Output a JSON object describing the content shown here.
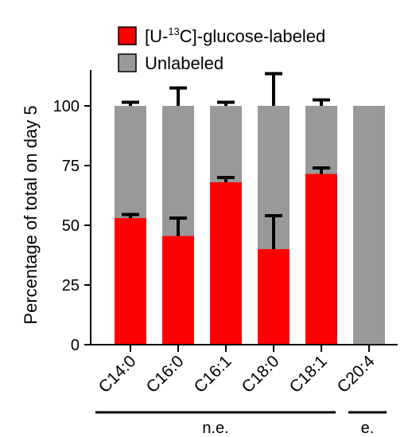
{
  "chart_data": {
    "type": "bar",
    "stacked": true,
    "categories": [
      "C14:0",
      "C16:0",
      "C16:1",
      "C18:0",
      "C18:1",
      "C20:4"
    ],
    "series": [
      {
        "name": "[U-13C]-glucose-labeled",
        "legend_prefix": "[U-",
        "legend_sup": "13",
        "legend_suffix": "C]-glucose-labeled",
        "color": "#ff0000",
        "values": [
          53,
          45.5,
          68,
          40,
          71.5,
          0
        ],
        "error_upper": [
          1.5,
          7.5,
          2,
          14,
          2.5,
          0
        ]
      },
      {
        "name": "Unlabeled",
        "color": "#999999",
        "values": [
          47,
          54.5,
          32,
          60,
          28.5,
          100
        ],
        "error_upper": [
          1.5,
          7.5,
          1.5,
          13.5,
          2.5,
          0
        ]
      }
    ],
    "ylabel": "Percentage of total on day 5",
    "xlabel": "",
    "ylim": [
      0,
      115
    ],
    "yticks": [
      0,
      25,
      50,
      75,
      100
    ],
    "legend_position": "top-left",
    "grid": false,
    "groups": [
      {
        "label": "n.e.",
        "categories": [
          "C14:0",
          "C16:0",
          "C16:1",
          "C18:0",
          "C18:1"
        ]
      },
      {
        "label": "e.",
        "categories": [
          "C20:4"
        ]
      }
    ]
  }
}
